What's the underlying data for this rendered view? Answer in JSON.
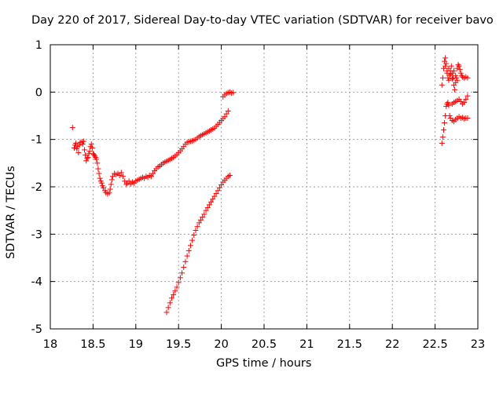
{
  "chart_data": {
    "type": "scatter",
    "title": "Day 220 of 2017, Sidereal Day-to-day VTEC variation (SDTVAR) for receiver bavo",
    "xlabel": "GPS time / hours",
    "ylabel": "SDTVAR / TECUs",
    "xlim": [
      18,
      23
    ],
    "ylim": [
      -5,
      1
    ],
    "x_ticks": [
      "18",
      "18.5",
      "19",
      "19.5",
      "20",
      "20.5",
      "21",
      "21.5",
      "22",
      "22.5",
      "23"
    ],
    "y_ticks": [
      "1",
      "0",
      "-1",
      "-2",
      "-3",
      "-4",
      "-5"
    ],
    "grid": true,
    "marker": "+",
    "series": [
      {
        "color": "#ff0000",
        "points": [
          [
            18.26,
            -0.75
          ],
          [
            18.28,
            -1.18
          ],
          [
            18.29,
            -1.12
          ],
          [
            18.3,
            -1.08
          ],
          [
            18.31,
            -1.2
          ],
          [
            18.32,
            -1.15
          ],
          [
            18.33,
            -1.28
          ],
          [
            18.34,
            -1.12
          ],
          [
            18.35,
            -1.06
          ],
          [
            18.37,
            -1.05
          ],
          [
            18.38,
            -1.1
          ],
          [
            18.39,
            -1.04
          ],
          [
            18.4,
            -1.22
          ],
          [
            18.41,
            -1.33
          ],
          [
            18.42,
            -1.45
          ],
          [
            18.43,
            -1.4
          ],
          [
            18.44,
            -1.38
          ],
          [
            18.45,
            -1.3
          ],
          [
            18.46,
            -1.25
          ],
          [
            18.47,
            -1.15
          ],
          [
            18.48,
            -1.1
          ],
          [
            18.49,
            -1.18
          ],
          [
            18.5,
            -1.3
          ],
          [
            18.51,
            -1.32
          ],
          [
            18.52,
            -1.35
          ],
          [
            18.53,
            -1.38
          ],
          [
            18.54,
            -1.42
          ],
          [
            18.55,
            -1.5
          ],
          [
            18.56,
            -1.62
          ],
          [
            18.57,
            -1.72
          ],
          [
            18.58,
            -1.82
          ],
          [
            18.59,
            -1.88
          ],
          [
            18.6,
            -1.92
          ],
          [
            18.61,
            -1.98
          ],
          [
            18.62,
            -2.02
          ],
          [
            18.64,
            -2.08
          ],
          [
            18.65,
            -2.12
          ],
          [
            18.67,
            -2.15
          ],
          [
            18.69,
            -2.13
          ],
          [
            18.7,
            -2.05
          ],
          [
            18.71,
            -1.95
          ],
          [
            18.72,
            -1.85
          ],
          [
            18.73,
            -1.78
          ],
          [
            18.75,
            -1.72
          ],
          [
            18.77,
            -1.74
          ],
          [
            18.79,
            -1.72
          ],
          [
            18.81,
            -1.76
          ],
          [
            18.83,
            -1.7
          ],
          [
            18.85,
            -1.78
          ],
          [
            18.87,
            -1.88
          ],
          [
            18.89,
            -1.95
          ],
          [
            18.9,
            -1.92
          ],
          [
            18.92,
            -1.88
          ],
          [
            18.94,
            -1.94
          ],
          [
            18.96,
            -1.9
          ],
          [
            18.98,
            -1.92
          ],
          [
            19.0,
            -1.88
          ],
          [
            19.02,
            -1.86
          ],
          [
            19.04,
            -1.84
          ],
          [
            19.06,
            -1.82
          ],
          [
            19.08,
            -1.8
          ],
          [
            19.1,
            -1.82
          ],
          [
            19.12,
            -1.78
          ],
          [
            19.14,
            -1.8
          ],
          [
            19.16,
            -1.76
          ],
          [
            19.18,
            -1.78
          ],
          [
            19.2,
            -1.72
          ],
          [
            19.22,
            -1.66
          ],
          [
            19.24,
            -1.62
          ],
          [
            19.26,
            -1.58
          ],
          [
            19.28,
            -1.56
          ],
          [
            19.3,
            -1.53
          ],
          [
            19.32,
            -1.5
          ],
          [
            19.34,
            -1.48
          ],
          [
            19.36,
            -1.46
          ],
          [
            19.38,
            -1.44
          ],
          [
            19.4,
            -1.42
          ],
          [
            19.42,
            -1.4
          ],
          [
            19.44,
            -1.38
          ],
          [
            19.46,
            -1.35
          ],
          [
            19.48,
            -1.32
          ],
          [
            19.5,
            -1.28
          ],
          [
            19.52,
            -1.24
          ],
          [
            19.54,
            -1.2
          ],
          [
            19.56,
            -1.15
          ],
          [
            19.58,
            -1.1
          ],
          [
            19.6,
            -1.06
          ],
          [
            19.62,
            -1.05
          ],
          [
            19.64,
            -1.04
          ],
          [
            19.66,
            -1.03
          ],
          [
            19.68,
            -1.02
          ],
          [
            19.7,
            -1.0
          ],
          [
            19.72,
            -0.97
          ],
          [
            19.74,
            -0.94
          ],
          [
            19.76,
            -0.92
          ],
          [
            19.78,
            -0.9
          ],
          [
            19.8,
            -0.88
          ],
          [
            19.82,
            -0.86
          ],
          [
            19.84,
            -0.84
          ],
          [
            19.86,
            -0.82
          ],
          [
            19.88,
            -0.8
          ],
          [
            19.9,
            -0.78
          ],
          [
            19.92,
            -0.76
          ],
          [
            19.94,
            -0.72
          ],
          [
            19.96,
            -0.68
          ],
          [
            19.98,
            -0.64
          ],
          [
            20.0,
            -0.6
          ],
          [
            20.02,
            -0.56
          ],
          [
            20.04,
            -0.52
          ],
          [
            20.06,
            -0.46
          ],
          [
            20.08,
            -0.4
          ],
          [
            20.02,
            -0.1
          ],
          [
            20.04,
            -0.06
          ],
          [
            20.06,
            -0.03
          ],
          [
            20.08,
            -0.01
          ],
          [
            20.1,
            0.0
          ],
          [
            20.12,
            -0.02
          ],
          [
            20.14,
            -0.01
          ],
          [
            19.36,
            -4.65
          ],
          [
            19.38,
            -4.55
          ],
          [
            19.4,
            -4.45
          ],
          [
            19.42,
            -4.35
          ],
          [
            19.44,
            -4.28
          ],
          [
            19.46,
            -4.2
          ],
          [
            19.48,
            -4.12
          ],
          [
            19.5,
            -4.02
          ],
          [
            19.52,
            -3.92
          ],
          [
            19.54,
            -3.82
          ],
          [
            19.56,
            -3.7
          ],
          [
            19.58,
            -3.58
          ],
          [
            19.6,
            -3.46
          ],
          [
            19.62,
            -3.35
          ],
          [
            19.64,
            -3.24
          ],
          [
            19.66,
            -3.13
          ],
          [
            19.68,
            -3.02
          ],
          [
            19.7,
            -2.92
          ],
          [
            19.72,
            -2.84
          ],
          [
            19.74,
            -2.76
          ],
          [
            19.76,
            -2.7
          ],
          [
            19.78,
            -2.64
          ],
          [
            19.8,
            -2.58
          ],
          [
            19.82,
            -2.5
          ],
          [
            19.84,
            -2.44
          ],
          [
            19.86,
            -2.38
          ],
          [
            19.88,
            -2.32
          ],
          [
            19.9,
            -2.26
          ],
          [
            19.92,
            -2.2
          ],
          [
            19.94,
            -2.14
          ],
          [
            19.96,
            -2.08
          ],
          [
            19.98,
            -2.02
          ],
          [
            20.0,
            -1.96
          ],
          [
            20.02,
            -1.9
          ],
          [
            20.04,
            -1.86
          ],
          [
            20.06,
            -1.82
          ],
          [
            20.08,
            -1.78
          ],
          [
            20.1,
            -1.76
          ],
          [
            22.58,
            -1.08
          ],
          [
            22.59,
            -0.95
          ],
          [
            22.6,
            -0.8
          ],
          [
            22.61,
            -0.65
          ],
          [
            22.62,
            -0.5
          ],
          [
            22.63,
            -0.3
          ],
          [
            22.64,
            -0.25
          ],
          [
            22.65,
            -0.22
          ],
          [
            22.66,
            -0.28
          ],
          [
            22.67,
            -0.5
          ],
          [
            22.68,
            -0.55
          ],
          [
            22.7,
            -0.6
          ],
          [
            22.72,
            -0.62
          ],
          [
            22.74,
            -0.58
          ],
          [
            22.76,
            -0.55
          ],
          [
            22.78,
            -0.52
          ],
          [
            22.8,
            -0.55
          ],
          [
            22.82,
            -0.54
          ],
          [
            22.84,
            -0.56
          ],
          [
            22.86,
            -0.55
          ],
          [
            22.88,
            -0.55
          ],
          [
            22.7,
            -0.25
          ],
          [
            22.72,
            -0.22
          ],
          [
            22.74,
            -0.2
          ],
          [
            22.76,
            -0.18
          ],
          [
            22.78,
            -0.15
          ],
          [
            22.8,
            -0.2
          ],
          [
            22.82,
            -0.25
          ],
          [
            22.84,
            -0.22
          ],
          [
            22.86,
            -0.15
          ],
          [
            22.88,
            -0.08
          ],
          [
            22.58,
            0.15
          ],
          [
            22.59,
            0.3
          ],
          [
            22.6,
            0.5
          ],
          [
            22.61,
            0.65
          ],
          [
            22.62,
            0.72
          ],
          [
            22.63,
            0.6
          ],
          [
            22.64,
            0.4
          ],
          [
            22.65,
            0.3
          ],
          [
            22.66,
            0.25
          ],
          [
            22.67,
            0.35
          ],
          [
            22.68,
            0.45
          ],
          [
            22.69,
            0.55
          ],
          [
            22.7,
            0.4
          ],
          [
            22.71,
            0.3
          ],
          [
            22.72,
            0.15
          ],
          [
            22.73,
            0.05
          ],
          [
            22.74,
            0.2
          ],
          [
            22.75,
            0.3
          ],
          [
            22.76,
            0.5
          ],
          [
            22.77,
            0.58
          ],
          [
            22.78,
            0.55
          ],
          [
            22.79,
            0.48
          ],
          [
            22.8,
            0.4
          ],
          [
            22.81,
            0.35
          ],
          [
            22.82,
            0.32
          ],
          [
            22.84,
            0.3
          ],
          [
            22.86,
            0.32
          ],
          [
            22.88,
            0.3
          ],
          [
            22.62,
            0.55
          ],
          [
            22.64,
            0.45
          ],
          [
            22.66,
            0.5
          ],
          [
            22.68,
            0.38
          ],
          [
            22.7,
            0.28
          ],
          [
            22.72,
            0.45
          ],
          [
            22.74,
            0.35
          ],
          [
            22.76,
            0.25
          ]
        ]
      }
    ]
  }
}
